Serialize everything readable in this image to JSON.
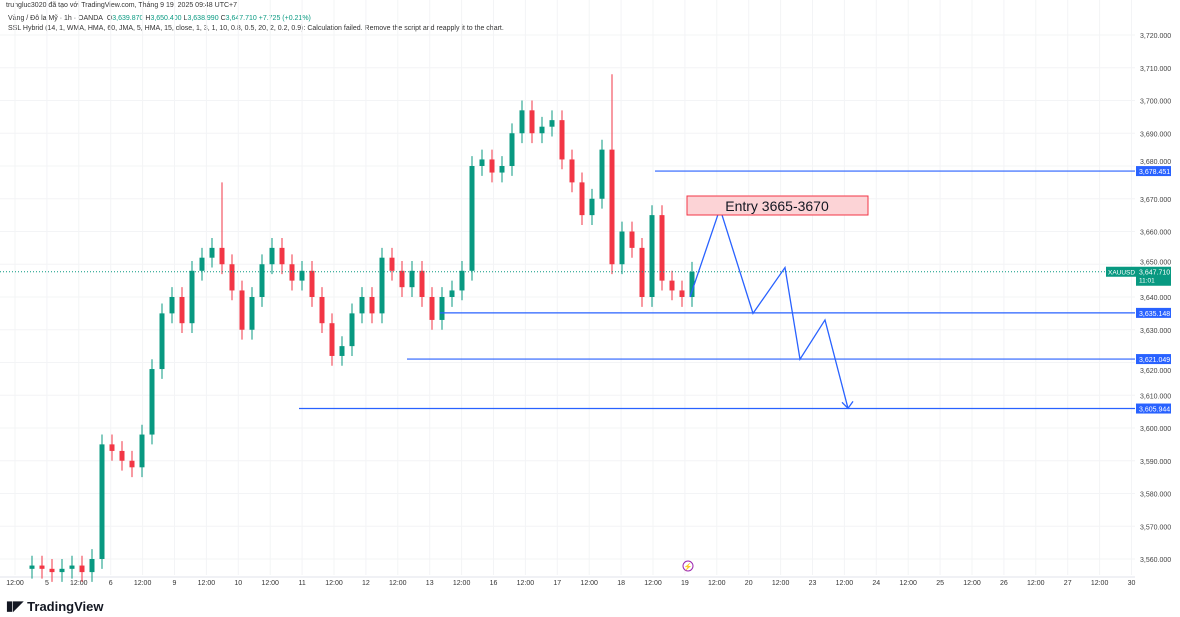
{
  "header": {
    "credit": "trungluc3020 đã tạo với TradingView.com, Tháng 9 19, 2025 09:48 UTC+7",
    "symbol": "Vàng / Đô la Mỹ · 1h · OANDA",
    "o_label": "O",
    "o": "3,639.870",
    "h_label": "H",
    "h": "3,650.400",
    "l_label": "L",
    "l": "3,638.990",
    "c_label": "C",
    "c": "3,647.710",
    "change": "+7.725 (+0.21%)",
    "indicator": "SSL Hybrid (14, 1, WMA, HMA, 60, JMA, 5, HMA, 15, close, 1, 3, 1, 10, 0.8, 0.5, 20, 2, 0.2, 0.9): Calculation failed. Remove the script and reapply it to the chart."
  },
  "logo": "TradingView",
  "colors": {
    "up": "#089981",
    "down": "#f23645",
    "drawing": "#2962ff",
    "price": "#089981"
  },
  "chart_data": {
    "type": "candlestick",
    "ylim": [
      3555,
      3725
    ],
    "y_ticks": [
      3560,
      3570,
      3580,
      3590,
      3600,
      3610,
      3620,
      3630,
      3640,
      3650,
      3660,
      3670,
      3680,
      3690,
      3700,
      3710,
      3720
    ],
    "x_tick_labels": [
      "12:00",
      "5",
      "12:00",
      "6",
      "12:00",
      "9",
      "12:00",
      "10",
      "12:00",
      "11",
      "12:00",
      "12",
      "12:00",
      "13",
      "12:00",
      "16",
      "12:00",
      "17",
      "12:00",
      "18",
      "12:00",
      "19",
      "12:00",
      "20",
      "12:00",
      "23",
      "12:00",
      "24",
      "12:00",
      "25",
      "12:00",
      "26",
      "12:00",
      "27",
      "12:00",
      "30"
    ],
    "closes": [
      3558,
      3557,
      3556,
      3557,
      3558,
      3556,
      3560,
      3595,
      3593,
      3590,
      3588,
      3598,
      3618,
      3635,
      3640,
      3632,
      3648,
      3652,
      3655,
      3650,
      3642,
      3630,
      3640,
      3650,
      3655,
      3650,
      3645,
      3648,
      3640,
      3632,
      3622,
      3625,
      3635,
      3640,
      3635,
      3652,
      3648,
      3643,
      3648,
      3640,
      3633,
      3640,
      3642,
      3648,
      3680,
      3682,
      3678,
      3680,
      3690,
      3697,
      3690,
      3692,
      3694,
      3682,
      3675,
      3665,
      3670,
      3685,
      3650,
      3660,
      3655,
      3640,
      3665,
      3645,
      3642,
      3640,
      3647.71
    ],
    "wick_overrides": {
      "19": 3675,
      "58": 3708
    },
    "last_price": {
      "symbol": "XAUUSD",
      "value": "3,647.710",
      "countdown": "11:01",
      "price": 3647.71
    },
    "levels": [
      {
        "price": 3678.451,
        "label": "3,678.451"
      },
      {
        "price": 3635.148,
        "label": "3,635.148"
      },
      {
        "price": 3621.049,
        "label": "3,621.049"
      },
      {
        "price": 3605.944,
        "label": "3,605.944"
      }
    ],
    "zigzag_prices": [
      3640,
      3667,
      3635,
      3649,
      3621,
      3633,
      3606
    ],
    "annotation": "Entry 3665-3670"
  }
}
